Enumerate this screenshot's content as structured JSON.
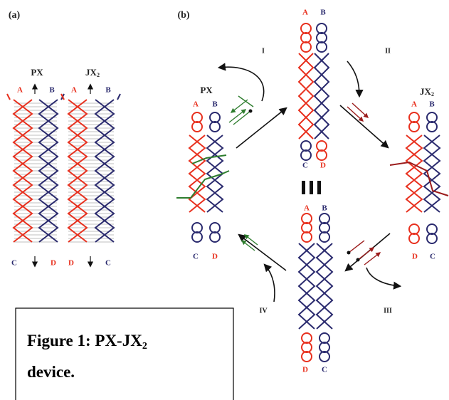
{
  "panel_a": {
    "label": "(a)",
    "molecules": [
      {
        "title": "PX",
        "top": [
          "A",
          "B"
        ],
        "bottom": [
          "C",
          "D"
        ]
      },
      {
        "title": "JX",
        "title_sub": "2",
        "top": [
          "A",
          "B"
        ],
        "bottom": [
          "D",
          "C"
        ]
      }
    ]
  },
  "panel_b": {
    "label": "(b)",
    "molecules": [
      {
        "title": "PX",
        "top": [
          "A",
          "B"
        ],
        "bottom": [
          "C",
          "D"
        ]
      },
      {
        "top": [
          "A",
          "B"
        ],
        "bottom": [
          "C",
          "D"
        ]
      },
      {
        "top": [
          "A",
          "B"
        ],
        "bottom": [
          "D",
          "C"
        ]
      },
      {
        "title": "JX",
        "title_sub": "2",
        "top": [
          "A",
          "B"
        ],
        "bottom": [
          "D",
          "C"
        ]
      }
    ],
    "steps": [
      "I",
      "II",
      "III",
      "IV"
    ]
  },
  "caption": {
    "title": "Figure 1: PX-JX",
    "title_sub": "2",
    "line2": "device."
  }
}
